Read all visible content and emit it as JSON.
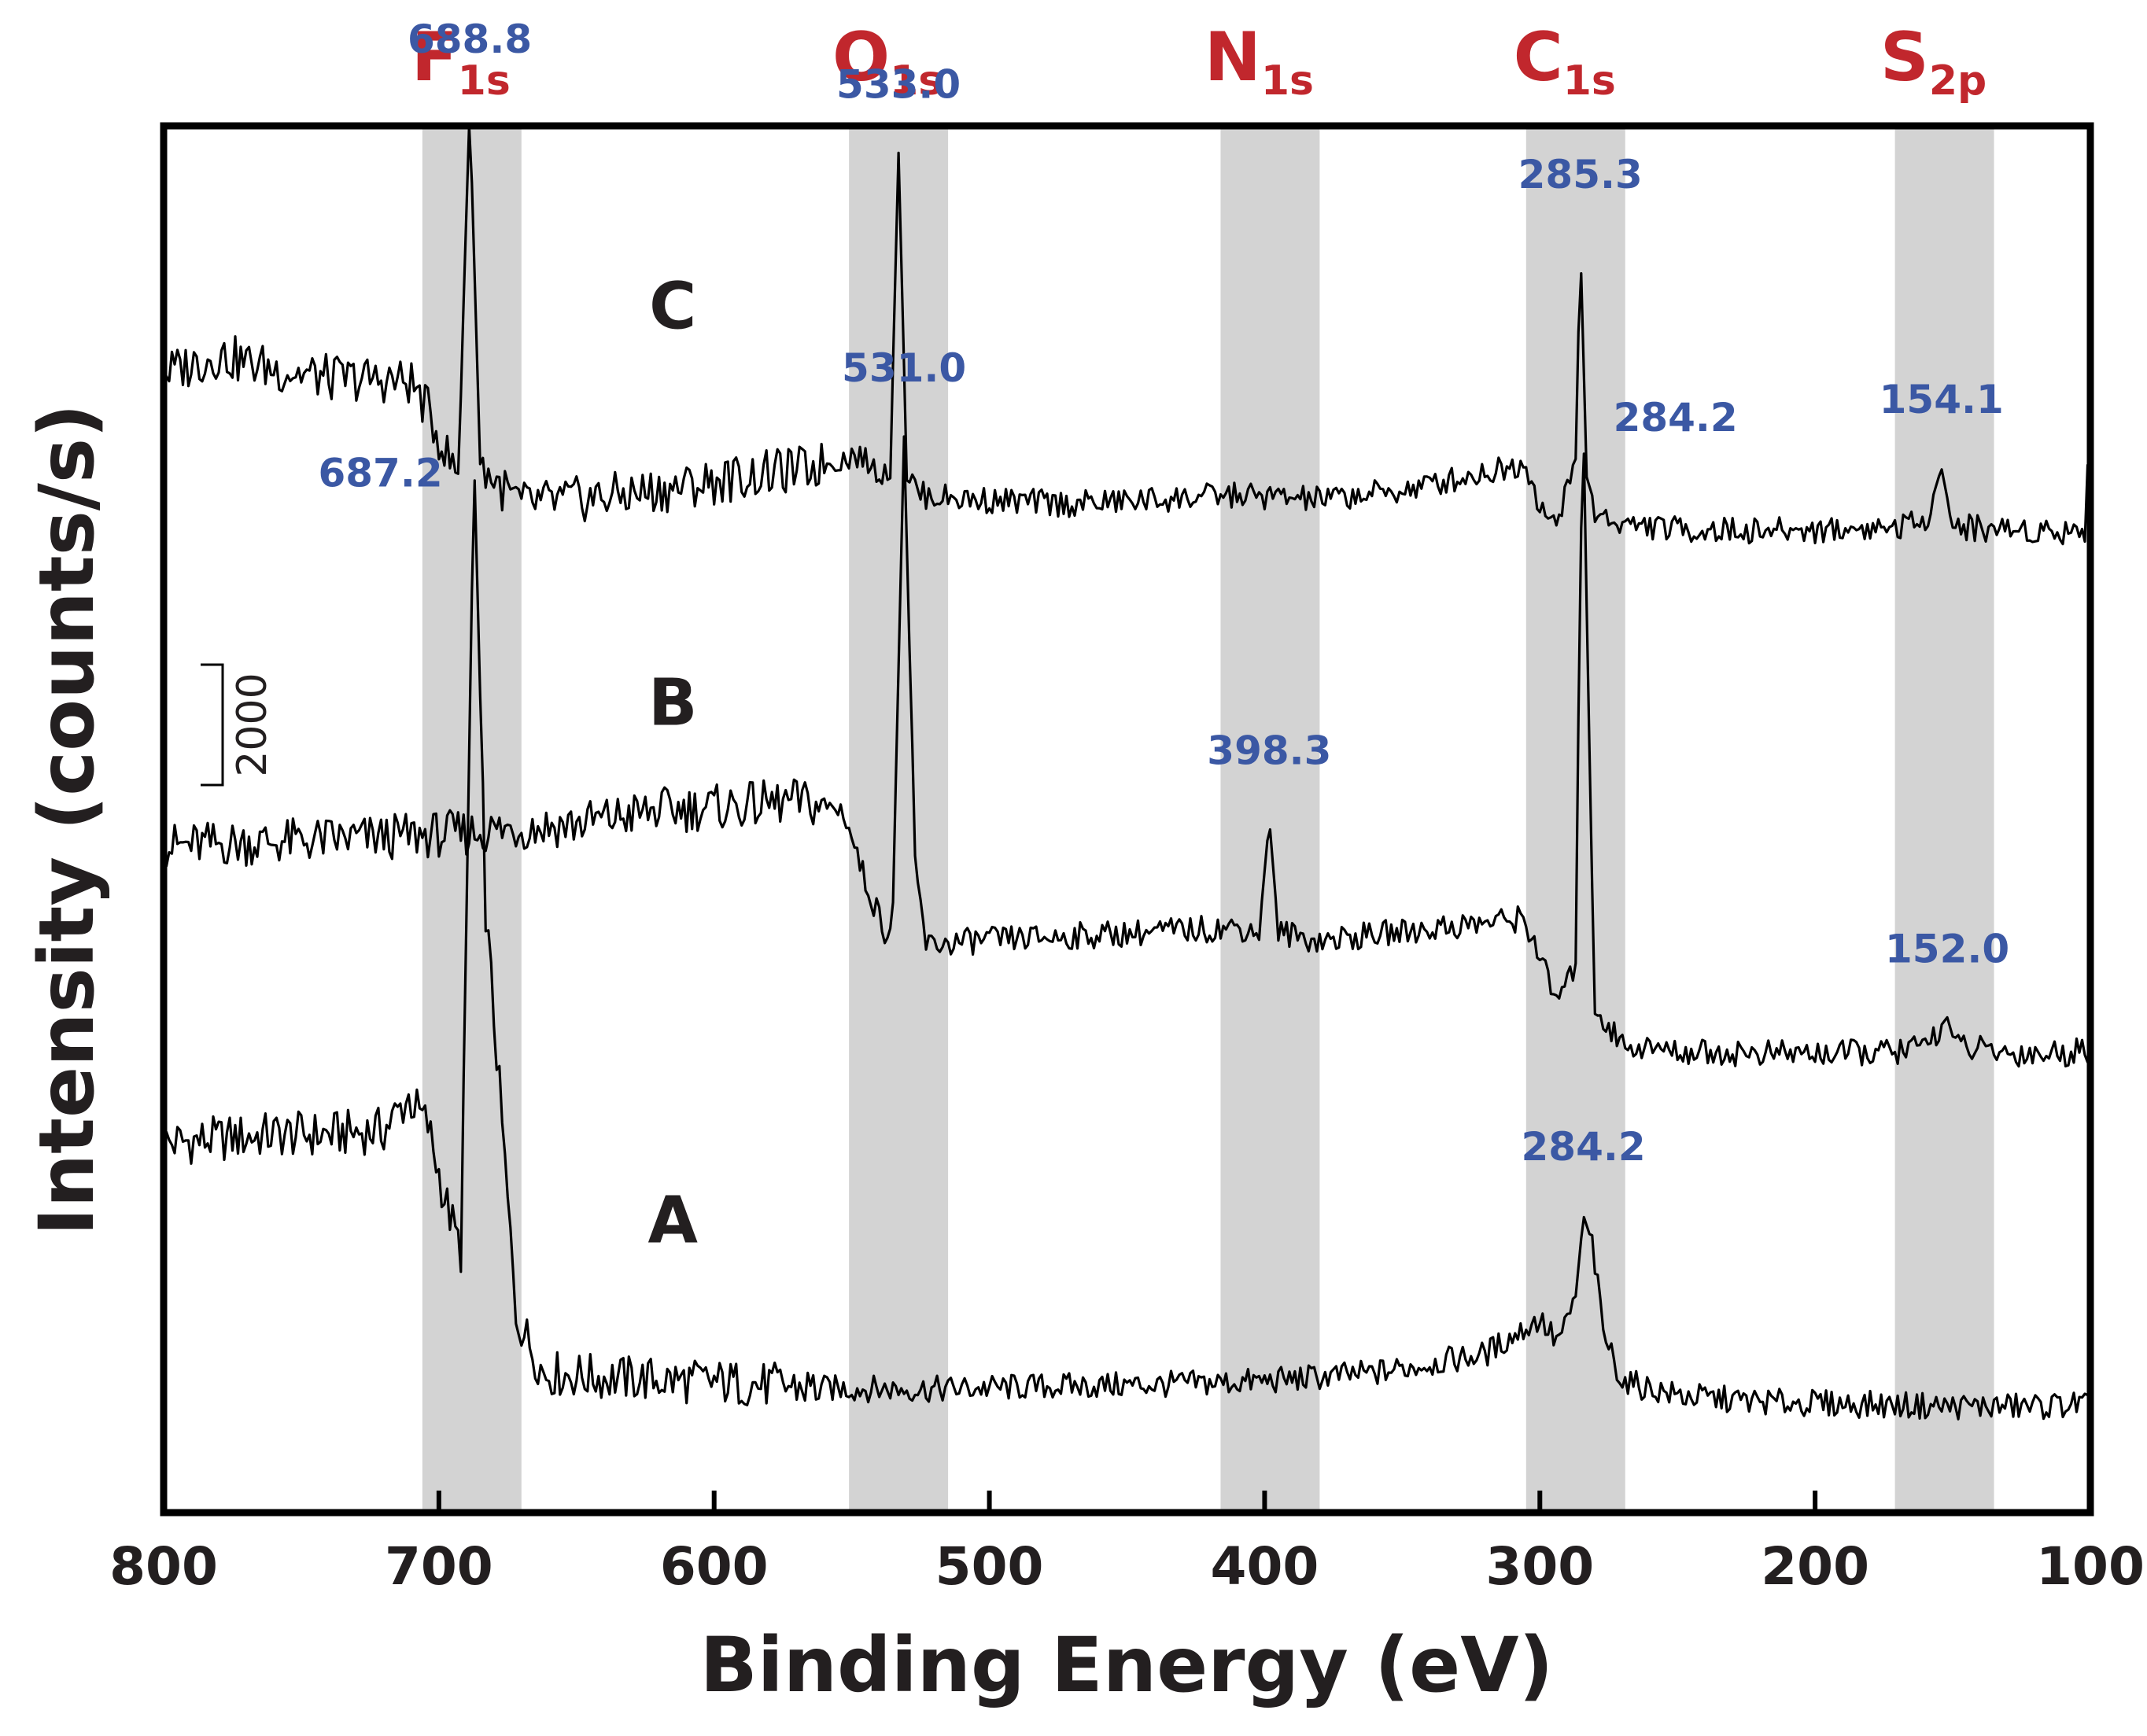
{
  "colors": {
    "background": "#ffffff",
    "axis": "#000000",
    "trace": "#000000",
    "band": "#d3d3d3",
    "element_label": "#c1272d",
    "peak_label": "#3b58a4",
    "text": "#231f20"
  },
  "chart_data": {
    "type": "line",
    "title": "",
    "xlabel": "Binding Energy (eV)",
    "ylabel": "Intensity (counts/s)",
    "x_range": [
      800,
      100
    ],
    "x_reversed": true,
    "x_ticks": [
      "800",
      "700",
      "600",
      "500",
      "400",
      "300",
      "200",
      "100"
    ],
    "x_tick_values": [
      800,
      700,
      600,
      500,
      400,
      300,
      200,
      100
    ],
    "y_range": [
      -1200,
      14200
    ],
    "y_ticks_shown": false,
    "scale_bar": {
      "label": "2000",
      "value": 2000,
      "at_x_ev": 780
    },
    "element_bands": [
      {
        "element": "F",
        "subscript": "1s",
        "from_ev": 706,
        "to_ev": 670
      },
      {
        "element": "O",
        "subscript": "1s",
        "from_ev": 551,
        "to_ev": 515
      },
      {
        "element": "N",
        "subscript": "1s",
        "from_ev": 416,
        "to_ev": 380
      },
      {
        "element": "C",
        "subscript": "1s",
        "from_ev": 305,
        "to_ev": 269
      },
      {
        "element": "S",
        "subscript": "2p",
        "from_ev": 171,
        "to_ev": 135
      }
    ],
    "series": [
      {
        "name": "A",
        "label_at": {
          "x_ev": 615,
          "y": 1800
        },
        "points": [
          [
            800,
            2900
          ],
          [
            780,
            2950
          ],
          [
            760,
            3000
          ],
          [
            740,
            3000
          ],
          [
            720,
            3050
          ],
          [
            711,
            3400
          ],
          [
            704,
            3100
          ],
          [
            698,
            2300
          ],
          [
            692,
            1700
          ],
          [
            687.2,
            10500
          ],
          [
            683,
            5500
          ],
          [
            678,
            3500
          ],
          [
            672,
            1000
          ],
          [
            662,
            350
          ],
          [
            640,
            300
          ],
          [
            600,
            250
          ],
          [
            560,
            180
          ],
          [
            520,
            170
          ],
          [
            480,
            200
          ],
          [
            440,
            220
          ],
          [
            400,
            260
          ],
          [
            360,
            350
          ],
          [
            320,
            560
          ],
          [
            300,
            950
          ],
          [
            294,
            700
          ],
          [
            290,
            900
          ],
          [
            287,
            1200
          ],
          [
            284.2,
            2100
          ],
          [
            281,
            1800
          ],
          [
            277,
            800
          ],
          [
            270,
            260
          ],
          [
            250,
            100
          ],
          [
            220,
            30
          ],
          [
            180,
            0
          ],
          [
            150,
            -20
          ],
          [
            120,
            -20
          ],
          [
            101,
            10
          ],
          [
            100,
            30
          ]
        ],
        "peaks": [
          {
            "label": "687.2",
            "x_ev": 687.2,
            "y": 10500
          },
          {
            "label": "284.2",
            "x_ev": 284.2,
            "y": 2100
          }
        ]
      },
      {
        "name": "B",
        "label_at": {
          "x_ev": 615,
          "y": 7550
        },
        "points": [
          [
            800,
            6200
          ],
          [
            760,
            6250
          ],
          [
            720,
            6300
          ],
          [
            690,
            6350
          ],
          [
            650,
            6450
          ],
          [
            620,
            6600
          ],
          [
            590,
            6650
          ],
          [
            570,
            6700
          ],
          [
            553,
            6600
          ],
          [
            545,
            5800
          ],
          [
            537,
            5200
          ],
          [
            535,
            5600
          ],
          [
            531,
            10750
          ],
          [
            527,
            6000
          ],
          [
            523,
            5100
          ],
          [
            505,
            5150
          ],
          [
            470,
            5200
          ],
          [
            440,
            5250
          ],
          [
            410,
            5300
          ],
          [
            402,
            5250
          ],
          [
            398.3,
            6500
          ],
          [
            395,
            5250
          ],
          [
            380,
            5150
          ],
          [
            350,
            5250
          ],
          [
            320,
            5350
          ],
          [
            306,
            5400
          ],
          [
            300,
            5000
          ],
          [
            295,
            4500
          ],
          [
            290,
            4650
          ],
          [
            287,
            4900
          ],
          [
            285.5,
            9000
          ],
          [
            284.2,
            10900
          ],
          [
            282.5,
            8000
          ],
          [
            280,
            4400
          ],
          [
            270,
            4000
          ],
          [
            250,
            3920
          ],
          [
            220,
            3900
          ],
          [
            190,
            3900
          ],
          [
            170,
            3920
          ],
          [
            160,
            3980
          ],
          [
            152,
            4300
          ],
          [
            149,
            3980
          ],
          [
            130,
            3900
          ],
          [
            110,
            3900
          ],
          [
            101,
            3950
          ],
          [
            100,
            4250
          ]
        ],
        "peaks": [
          {
            "label": "531.0",
            "x_ev": 531.0,
            "y": 10750
          },
          {
            "label": "398.3",
            "x_ev": 398.3,
            "y": 6500
          },
          {
            "label": "284.2",
            "x_ev": 284.2,
            "y": 10900
          },
          {
            "label": "152.0",
            "x_ev": 152.0,
            "y": 4300
          }
        ]
      },
      {
        "name": "C",
        "label_at": {
          "x_ev": 615,
          "y": 11950
        },
        "points": [
          [
            800,
            11450
          ],
          [
            780,
            11650
          ],
          [
            760,
            11500
          ],
          [
            740,
            11400
          ],
          [
            720,
            11380
          ],
          [
            710,
            11350
          ],
          [
            705,
            11100
          ],
          [
            698,
            10600
          ],
          [
            693,
            10300
          ],
          [
            688.8,
            14400
          ],
          [
            685,
            10450
          ],
          [
            678,
            10200
          ],
          [
            670,
            10000
          ],
          [
            650,
            10050
          ],
          [
            620,
            10150
          ],
          [
            590,
            10300
          ],
          [
            565,
            10400
          ],
          [
            548,
            10550
          ],
          [
            540,
            10350
          ],
          [
            536,
            10400
          ],
          [
            533,
            13900
          ],
          [
            530,
            10350
          ],
          [
            525,
            10100
          ],
          [
            505,
            10050
          ],
          [
            470,
            10000
          ],
          [
            440,
            10050
          ],
          [
            410,
            10100
          ],
          [
            380,
            10050
          ],
          [
            350,
            10150
          ],
          [
            320,
            10350
          ],
          [
            305,
            10450
          ],
          [
            300,
            10000
          ],
          [
            294,
            9700
          ],
          [
            290,
            10300
          ],
          [
            287,
            10500
          ],
          [
            285.3,
            12900
          ],
          [
            283,
            10300
          ],
          [
            280,
            9900
          ],
          [
            270,
            9780
          ],
          [
            250,
            9720
          ],
          [
            220,
            9700
          ],
          [
            190,
            9720
          ],
          [
            170,
            9750
          ],
          [
            160,
            9800
          ],
          [
            154.1,
            10400
          ],
          [
            150,
            9750
          ],
          [
            130,
            9720
          ],
          [
            110,
            9700
          ],
          [
            102,
            9730
          ],
          [
            101,
            10300
          ],
          [
            100,
            9800
          ]
        ],
        "peaks": [
          {
            "label": "688.8",
            "x_ev": 688.8,
            "y": 14400
          },
          {
            "label": "533.0",
            "x_ev": 533.0,
            "y": 13900
          },
          {
            "label": "285.3",
            "x_ev": 285.3,
            "y": 12900
          },
          {
            "label": "154.1",
            "x_ev": 154.1,
            "y": 10400
          }
        ]
      }
    ]
  }
}
